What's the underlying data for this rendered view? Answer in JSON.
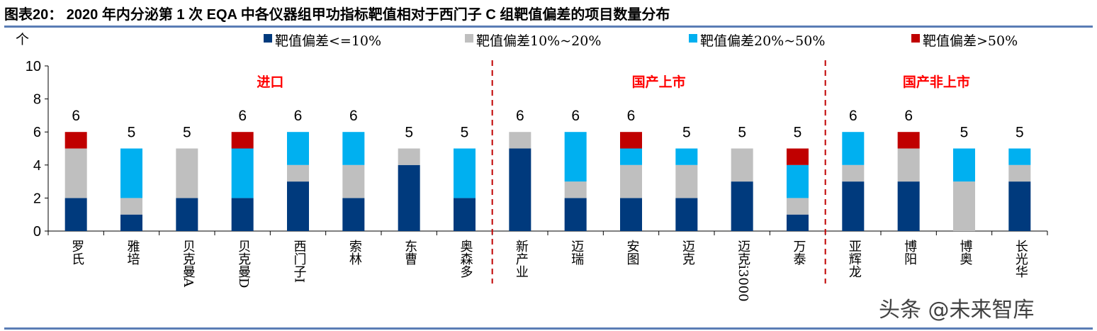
{
  "title": "图表20：  2020 年内分泌第 1 次 EQA 中各仪器组甲功指标靶值相对于西门子 C 组靶值偏差的项目数量分布",
  "watermark": "头条 @未来智库",
  "chart_data": {
    "type": "bar",
    "stacked": true,
    "ylabel": "个",
    "ylim": [
      0,
      10
    ],
    "yticks": [
      0,
      2,
      4,
      6,
      8,
      10
    ],
    "grid": false,
    "legend_position": "top",
    "categories": [
      "罗氏",
      "雅培",
      "贝克曼A",
      "贝克曼D",
      "西门子I",
      "索林",
      "东曹",
      "奥森多",
      "新产业",
      "迈瑞",
      "安图",
      "迈克",
      "迈克i3000",
      "万泰",
      "亚辉龙",
      "博阳",
      "博奥",
      "长光华"
    ],
    "series": [
      {
        "name": "靶值偏差<=10%",
        "color": "#003a7d",
        "values": [
          2,
          1,
          2,
          2,
          3,
          2,
          4,
          2,
          5,
          2,
          2,
          2,
          3,
          1,
          3,
          3,
          0,
          3
        ]
      },
      {
        "name": "靶值偏差10%~20%",
        "color": "#bfbfbf",
        "values": [
          3,
          1,
          3,
          0,
          1,
          2,
          1,
          0,
          1,
          1,
          2,
          2,
          2,
          1,
          1,
          2,
          3,
          1
        ]
      },
      {
        "name": "靶值偏差20%~50%",
        "color": "#00b0f0",
        "values": [
          0,
          3,
          0,
          3,
          2,
          2,
          0,
          3,
          0,
          3,
          1,
          1,
          0,
          2,
          2,
          0,
          2,
          1
        ]
      },
      {
        "name": "靶值偏差>50%",
        "color": "#c00000",
        "values": [
          1,
          0,
          0,
          1,
          0,
          0,
          0,
          0,
          0,
          0,
          1,
          0,
          0,
          1,
          0,
          1,
          0,
          0
        ]
      }
    ],
    "totals": [
      6,
      5,
      5,
      6,
      6,
      6,
      5,
      5,
      6,
      6,
      6,
      5,
      5,
      5,
      6,
      6,
      5,
      5
    ],
    "groups": [
      {
        "label": "进口",
        "from": 0,
        "to": 7
      },
      {
        "label": "国产上市",
        "from": 8,
        "to": 13
      },
      {
        "label": "国产非上市",
        "from": 14,
        "to": 17
      }
    ],
    "group_label_color": "#ff0000",
    "divider_color": "#c00000"
  }
}
